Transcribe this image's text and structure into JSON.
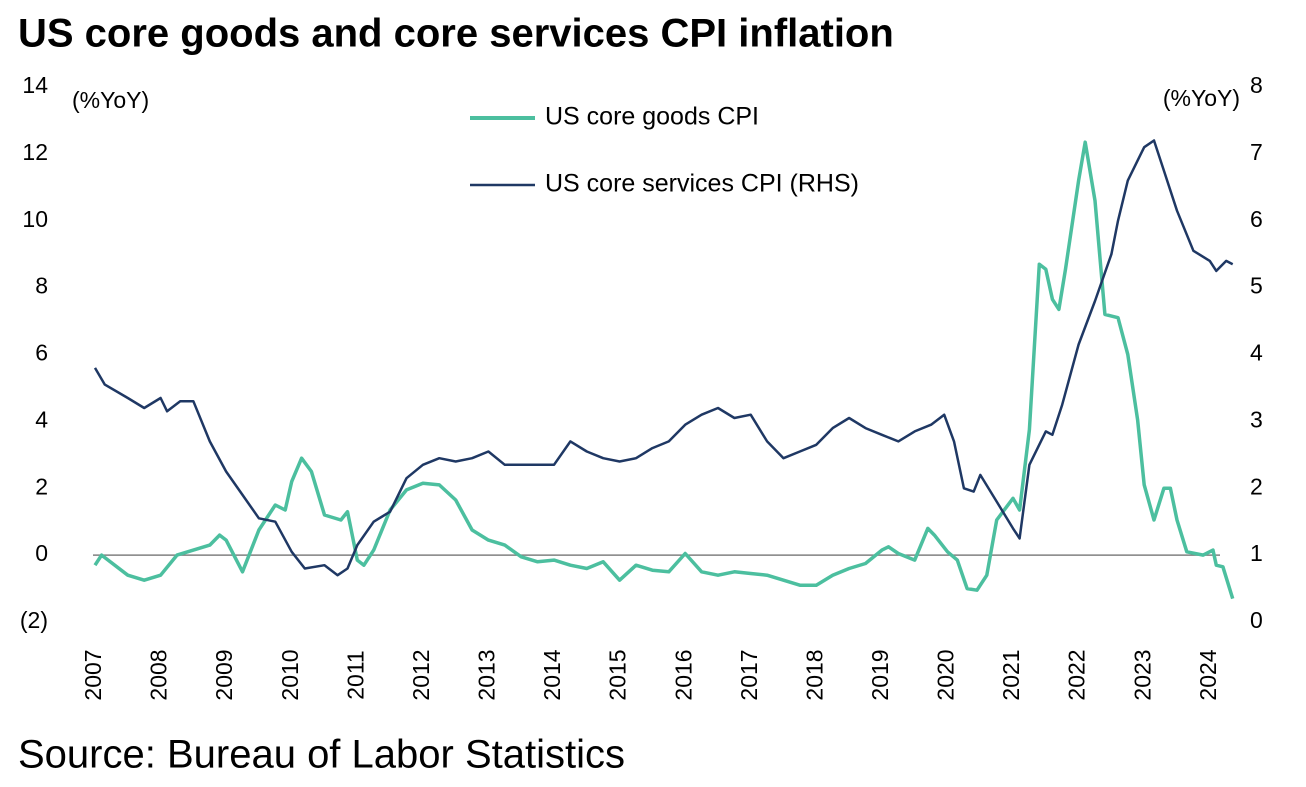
{
  "chart_data": {
    "type": "line",
    "title": "US core goods and core services CPI inflation",
    "source": "Source: Bureau of Labor Statistics",
    "y_unit_label": "(%YoY)",
    "y2_unit_label": "(%YoY)",
    "xlim": [
      2007,
      2024.4
    ],
    "xticks": [
      2007,
      2008,
      2009,
      2010,
      2011,
      2012,
      2013,
      2014,
      2015,
      2016,
      2017,
      2018,
      2019,
      2020,
      2021,
      2022,
      2023,
      2024
    ],
    "ylim": [
      -2,
      14
    ],
    "yticks": [
      {
        "value": -2,
        "label": "(2)"
      },
      0,
      2,
      4,
      6,
      8,
      10,
      12,
      14
    ],
    "y2lim": [
      0,
      8
    ],
    "y2ticks": [
      0,
      1,
      2,
      3,
      4,
      5,
      6,
      7,
      8
    ],
    "zero_line": true,
    "series": [
      {
        "name": "US core goods CPI",
        "color": "#4cbf9f",
        "axis": "y",
        "x": [
          2007.0,
          2007.1,
          2007.5,
          2007.75,
          2008.0,
          2008.25,
          2008.5,
          2008.75,
          2008.9,
          2009.0,
          2009.25,
          2009.5,
          2009.75,
          2009.9,
          2010.0,
          2010.15,
          2010.3,
          2010.5,
          2010.75,
          2010.85,
          2011.0,
          2011.1,
          2011.25,
          2011.5,
          2011.75,
          2012.0,
          2012.25,
          2012.5,
          2012.75,
          2013.0,
          2013.25,
          2013.5,
          2013.75,
          2014.0,
          2014.25,
          2014.5,
          2014.75,
          2015.0,
          2015.25,
          2015.5,
          2015.75,
          2016.0,
          2016.25,
          2016.5,
          2016.75,
          2017.0,
          2017.25,
          2017.5,
          2017.75,
          2018.0,
          2018.25,
          2018.5,
          2018.75,
          2019.0,
          2019.1,
          2019.25,
          2019.5,
          2019.7,
          2019.8,
          2020.0,
          2020.15,
          2020.3,
          2020.45,
          2020.6,
          2020.75,
          2021.0,
          2021.1,
          2021.25,
          2021.4,
          2021.5,
          2021.6,
          2021.7,
          2021.8,
          2022.0,
          2022.1,
          2022.25,
          2022.4,
          2022.6,
          2022.75,
          2022.9,
          2023.0,
          2023.15,
          2023.3,
          2023.4,
          2023.5,
          2023.65,
          2023.9,
          2024.05,
          2024.1,
          2024.2,
          2024.35
        ],
        "values": [
          -0.3,
          0,
          -0.6,
          -0.75,
          -0.6,
          0,
          0.15,
          0.3,
          0.6,
          0.45,
          -0.5,
          0.75,
          1.5,
          1.35,
          2.2,
          2.9,
          2.5,
          1.2,
          1.05,
          1.3,
          -0.15,
          -0.3,
          0.15,
          1.35,
          1.95,
          2.15,
          2.1,
          1.65,
          0.75,
          0.45,
          0.3,
          -0.05,
          -0.2,
          -0.15,
          -0.3,
          -0.4,
          -0.2,
          -0.75,
          -0.3,
          -0.45,
          -0.5,
          0.05,
          -0.5,
          -0.6,
          -0.5,
          -0.55,
          -0.6,
          -0.75,
          -0.9,
          -0.9,
          -0.6,
          -0.4,
          -0.25,
          0.15,
          0.25,
          0.05,
          -0.15,
          0.8,
          0.6,
          0.1,
          -0.15,
          -1.0,
          -1.05,
          -0.6,
          1.05,
          1.7,
          1.35,
          3.75,
          8.7,
          8.55,
          7.65,
          7.35,
          8.55,
          11.2,
          12.35,
          10.6,
          7.2,
          7.1,
          6.0,
          4.05,
          2.1,
          1.05,
          2.0,
          2.0,
          1.05,
          0.1,
          0,
          0.15,
          -0.3,
          -0.35,
          -1.3
        ]
      },
      {
        "name": "US core services CPI (RHS)",
        "color": "#1f3864",
        "axis": "y2",
        "x": [
          2007.0,
          2007.15,
          2007.5,
          2007.75,
          2008.0,
          2008.1,
          2008.3,
          2008.5,
          2008.75,
          2009.0,
          2009.25,
          2009.5,
          2009.75,
          2010.0,
          2010.2,
          2010.5,
          2010.7,
          2010.85,
          2011.0,
          2011.25,
          2011.5,
          2011.75,
          2012.0,
          2012.25,
          2012.5,
          2012.75,
          2013.0,
          2013.25,
          2013.5,
          2013.75,
          2014.0,
          2014.25,
          2014.5,
          2014.75,
          2015.0,
          2015.25,
          2015.5,
          2015.75,
          2016.0,
          2016.25,
          2016.5,
          2016.75,
          2017.0,
          2017.25,
          2017.5,
          2017.75,
          2018.0,
          2018.25,
          2018.5,
          2018.75,
          2019.0,
          2019.25,
          2019.5,
          2019.75,
          2019.95,
          2020.1,
          2020.25,
          2020.4,
          2020.5,
          2020.75,
          2021.0,
          2021.1,
          2021.25,
          2021.5,
          2021.6,
          2021.75,
          2022.0,
          2022.25,
          2022.5,
          2022.6,
          2022.75,
          2022.9,
          2023.0,
          2023.15,
          2023.3,
          2023.5,
          2023.75,
          2024.0,
          2024.1,
          2024.25,
          2024.35
        ],
        "values": [
          3.8,
          3.55,
          3.35,
          3.2,
          3.35,
          3.15,
          3.3,
          3.3,
          2.7,
          2.25,
          1.9,
          1.55,
          1.5,
          1.05,
          0.8,
          0.85,
          0.7,
          0.8,
          1.15,
          1.5,
          1.65,
          2.15,
          2.35,
          2.45,
          2.4,
          2.45,
          2.55,
          2.35,
          2.35,
          2.35,
          2.35,
          2.7,
          2.55,
          2.45,
          2.4,
          2.45,
          2.6,
          2.7,
          2.95,
          3.1,
          3.2,
          3.05,
          3.1,
          2.7,
          2.45,
          2.55,
          2.65,
          2.9,
          3.05,
          2.9,
          2.8,
          2.7,
          2.85,
          2.95,
          3.1,
          2.7,
          2.0,
          1.95,
          2.2,
          1.8,
          1.4,
          1.25,
          2.35,
          2.85,
          2.8,
          3.25,
          4.15,
          4.8,
          5.5,
          6.0,
          6.6,
          6.9,
          7.1,
          7.2,
          6.75,
          6.15,
          5.55,
          5.4,
          5.25,
          5.4,
          5.35
        ]
      }
    ]
  }
}
